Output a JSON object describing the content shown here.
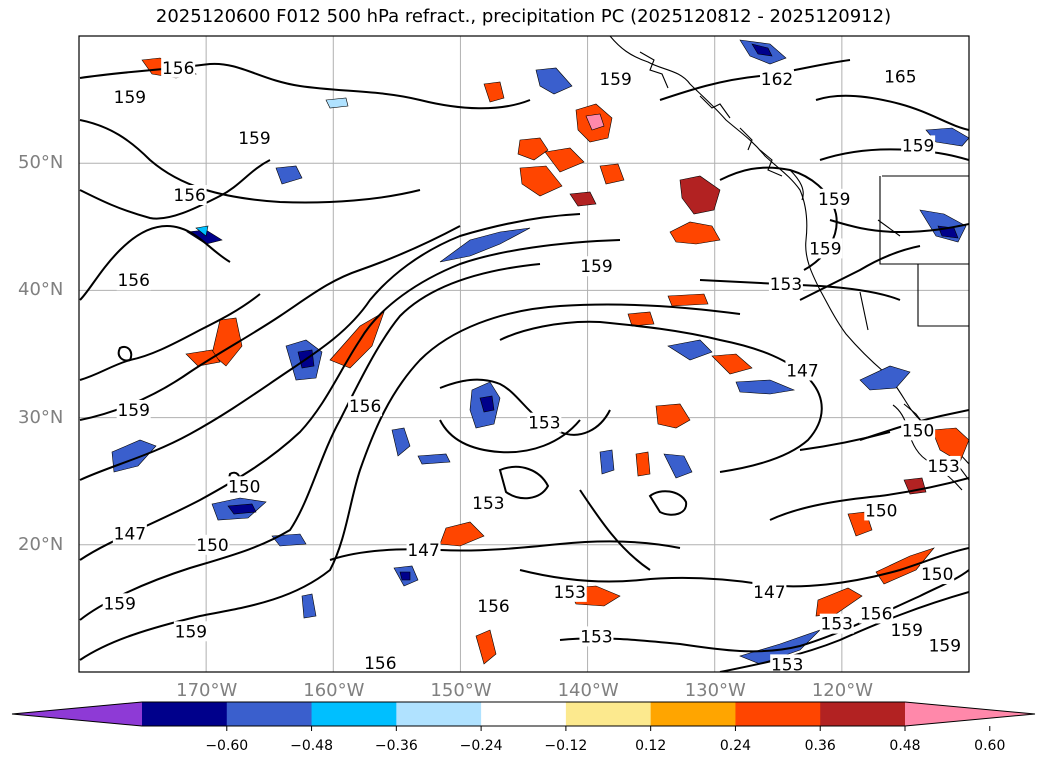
{
  "title": "2025120600 F012 500 hPa refract., precipitation PC (2025120812 - 2025120912)",
  "map": {
    "extent": {
      "lon_min": -180,
      "lon_max": -110,
      "lat_min": 10,
      "lat_max": 60
    },
    "lat_labels": [
      {
        "label": "50°N",
        "lat": 50
      },
      {
        "label": "40°N",
        "lat": 40
      },
      {
        "label": "30°N",
        "lat": 30
      },
      {
        "label": "20°N",
        "lat": 20
      }
    ],
    "lon_labels": [
      {
        "label": "170°W",
        "lon": -170
      },
      {
        "label": "160°W",
        "lon": -160
      },
      {
        "label": "150°W",
        "lon": -150
      },
      {
        "label": "140°W",
        "lon": -140
      },
      {
        "label": "130°W",
        "lon": -130
      },
      {
        "label": "120°W",
        "lon": -120
      }
    ],
    "contour_labels": [
      {
        "text": "156",
        "lon": -172.2,
        "lat": 57.5
      },
      {
        "text": "159",
        "lon": -176,
        "lat": 55.2
      },
      {
        "text": "159",
        "lon": -166.2,
        "lat": 52
      },
      {
        "text": "156",
        "lon": -171.3,
        "lat": 47.5
      },
      {
        "text": "156",
        "lon": -175.7,
        "lat": 40.8
      },
      {
        "text": "159",
        "lon": -175.7,
        "lat": 30.6
      },
      {
        "text": "150",
        "lon": -167,
        "lat": 24.6
      },
      {
        "text": "147",
        "lon": -176,
        "lat": 20.9
      },
      {
        "text": "150",
        "lon": -169.5,
        "lat": 20
      },
      {
        "text": "156",
        "lon": -157.5,
        "lat": 30.9
      },
      {
        "text": "147",
        "lon": -152.9,
        "lat": 19.6
      },
      {
        "text": "153",
        "lon": -143.4,
        "lat": 29.6
      },
      {
        "text": "153",
        "lon": -147.8,
        "lat": 23.3
      },
      {
        "text": "153",
        "lon": -141.4,
        "lat": 16.3
      },
      {
        "text": "156",
        "lon": -147.4,
        "lat": 15.2
      },
      {
        "text": "153",
        "lon": -139.3,
        "lat": 12.8
      },
      {
        "text": "159",
        "lon": -171.2,
        "lat": 13.2
      },
      {
        "text": "156",
        "lon": -156.3,
        "lat": 10.7
      },
      {
        "text": "159",
        "lon": -176.8,
        "lat": 15.4
      },
      {
        "text": "159",
        "lon": -139.3,
        "lat": 41.9
      },
      {
        "text": "153",
        "lon": -124.4,
        "lat": 40.5
      },
      {
        "text": "147",
        "lon": -123.1,
        "lat": 33.7
      },
      {
        "text": "147",
        "lon": -125.7,
        "lat": 16.3
      },
      {
        "text": "150",
        "lon": -116.9,
        "lat": 22.7
      },
      {
        "text": "153",
        "lon": -120.4,
        "lat": 13.8
      },
      {
        "text": "156",
        "lon": -117.3,
        "lat": 14.6
      },
      {
        "text": "159",
        "lon": -114.9,
        "lat": 13.3
      },
      {
        "text": "159",
        "lon": -111.9,
        "lat": 12.1
      },
      {
        "text": "153",
        "lon": -124.3,
        "lat": 10.6
      },
      {
        "text": "150",
        "lon": -114,
        "lat": 29
      },
      {
        "text": "153",
        "lon": -112,
        "lat": 26.2
      },
      {
        "text": "150",
        "lon": -112.5,
        "lat": 17.7
      },
      {
        "text": "162",
        "lon": -125.1,
        "lat": 56.6
      },
      {
        "text": "165",
        "lon": -115.4,
        "lat": 56.8
      },
      {
        "text": "159",
        "lon": -120.6,
        "lat": 47.2
      },
      {
        "text": "159",
        "lon": -114,
        "lat": 51.4
      },
      {
        "text": "159",
        "lon": -121.3,
        "lat": 43.3
      },
      {
        "text": "159",
        "lon": -137.8,
        "lat": 56.6
      }
    ]
  },
  "colorbar": {
    "colors": [
      "#8e3ad6",
      "#00008b",
      "#3a5fcd",
      "#00bfff",
      "#b0e2ff",
      "#ffffff",
      "#fce98e",
      "#ffa500",
      "#ff4500",
      "#b22222",
      "#ff88aa"
    ],
    "tick_labels": [
      "−0.60",
      "−0.48",
      "−0.36",
      "−0.24",
      "−0.12",
      "0.12",
      "0.24",
      "0.36",
      "0.48",
      "0.60"
    ]
  }
}
